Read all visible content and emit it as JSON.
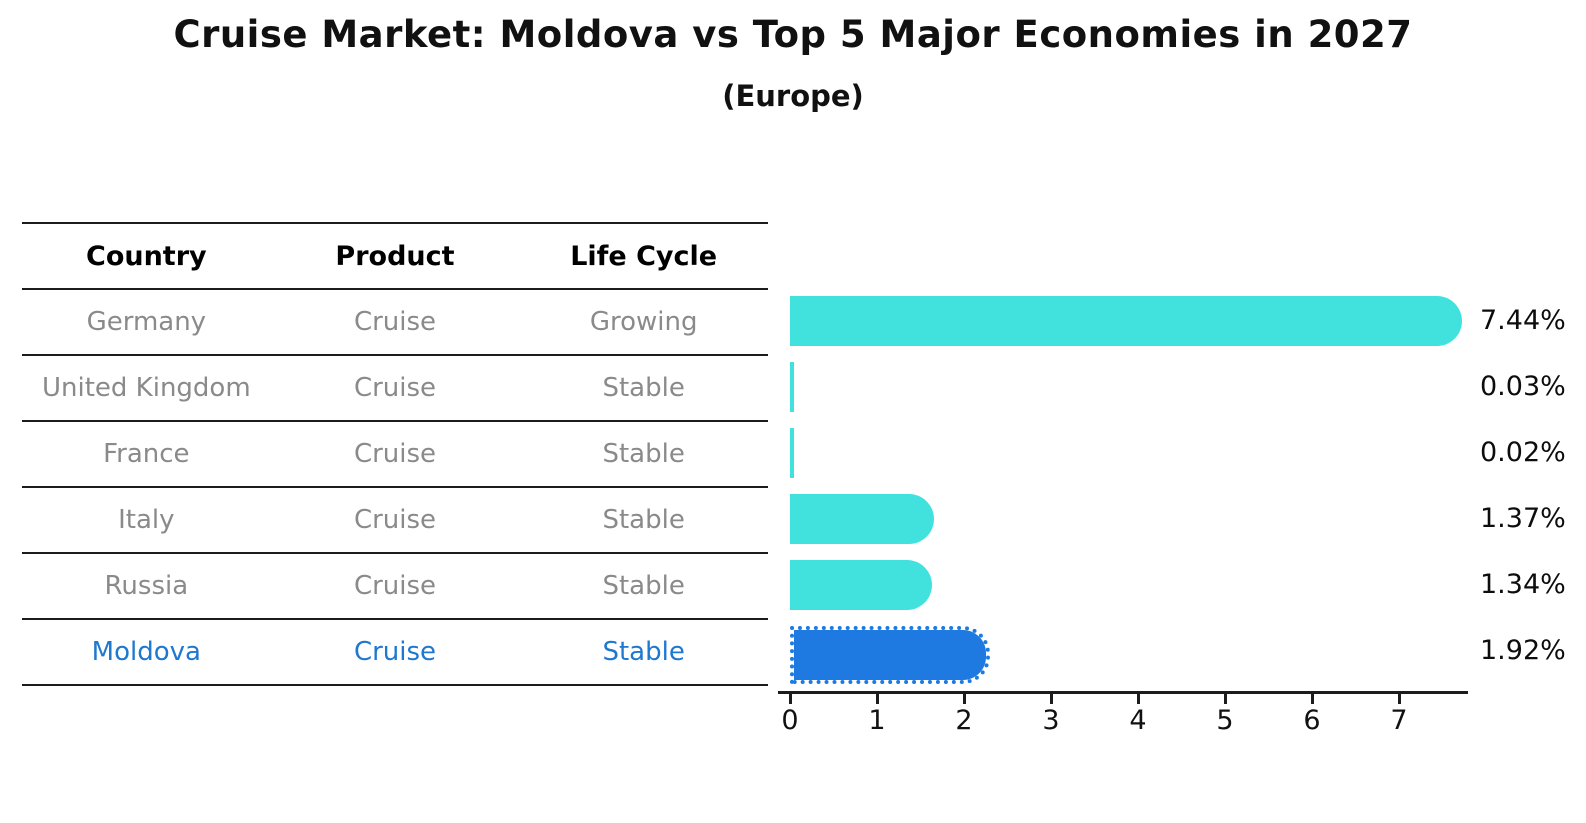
{
  "title": "Cruise Market: Moldova vs Top 5 Major Economies in 2027",
  "subtitle": "(Europe)",
  "table": {
    "headers": [
      "Country",
      "Product",
      "Life Cycle"
    ],
    "rows": [
      {
        "country": "Germany",
        "product": "Cruise",
        "life_cycle": "Growing"
      },
      {
        "country": "United Kingdom",
        "product": "Cruise",
        "life_cycle": "Stable"
      },
      {
        "country": "France",
        "product": "Cruise",
        "life_cycle": "Stable"
      },
      {
        "country": "Italy",
        "product": "Cruise",
        "life_cycle": "Stable"
      },
      {
        "country": "Russia",
        "product": "Cruise",
        "life_cycle": "Stable"
      },
      {
        "country": "Moldova",
        "product": "Cruise",
        "life_cycle": "Stable"
      }
    ],
    "highlighted_row": "Moldova"
  },
  "chart_data": {
    "type": "bar",
    "orientation": "horizontal",
    "title": "Cruise Market: Moldova vs Top 5 Major Economies in 2027",
    "subtitle": "(Europe)",
    "categories": [
      "Germany",
      "United Kingdom",
      "France",
      "Italy",
      "Russia",
      "Moldova"
    ],
    "values": [
      7.44,
      0.03,
      0.02,
      1.37,
      1.34,
      1.92
    ],
    "value_labels": [
      "7.44%",
      "0.03%",
      "0.02%",
      "1.37%",
      "1.34%",
      "1.92%"
    ],
    "x_ticks": [
      0,
      1,
      2,
      3,
      4,
      5,
      6,
      7
    ],
    "x_tick_labels": [
      "0",
      "1",
      "2",
      "3",
      "4",
      "5",
      "6",
      "7"
    ],
    "xlim": [
      0,
      7.8
    ],
    "grid": false,
    "legend": false,
    "highlight_index": 5,
    "bar_color": "#41E2DE",
    "highlight_bar_color": "#1E7AE0",
    "highlight_text_color": "#1E78D0",
    "value_label_color": "#0d0d0d"
  },
  "colors": {
    "background": "#ffffff",
    "title_text": "#111111",
    "table_header_text": "#000000",
    "table_body_text": "#8a8a8a",
    "table_line": "#1c1c1c",
    "axis_line": "#1c1c1c"
  }
}
